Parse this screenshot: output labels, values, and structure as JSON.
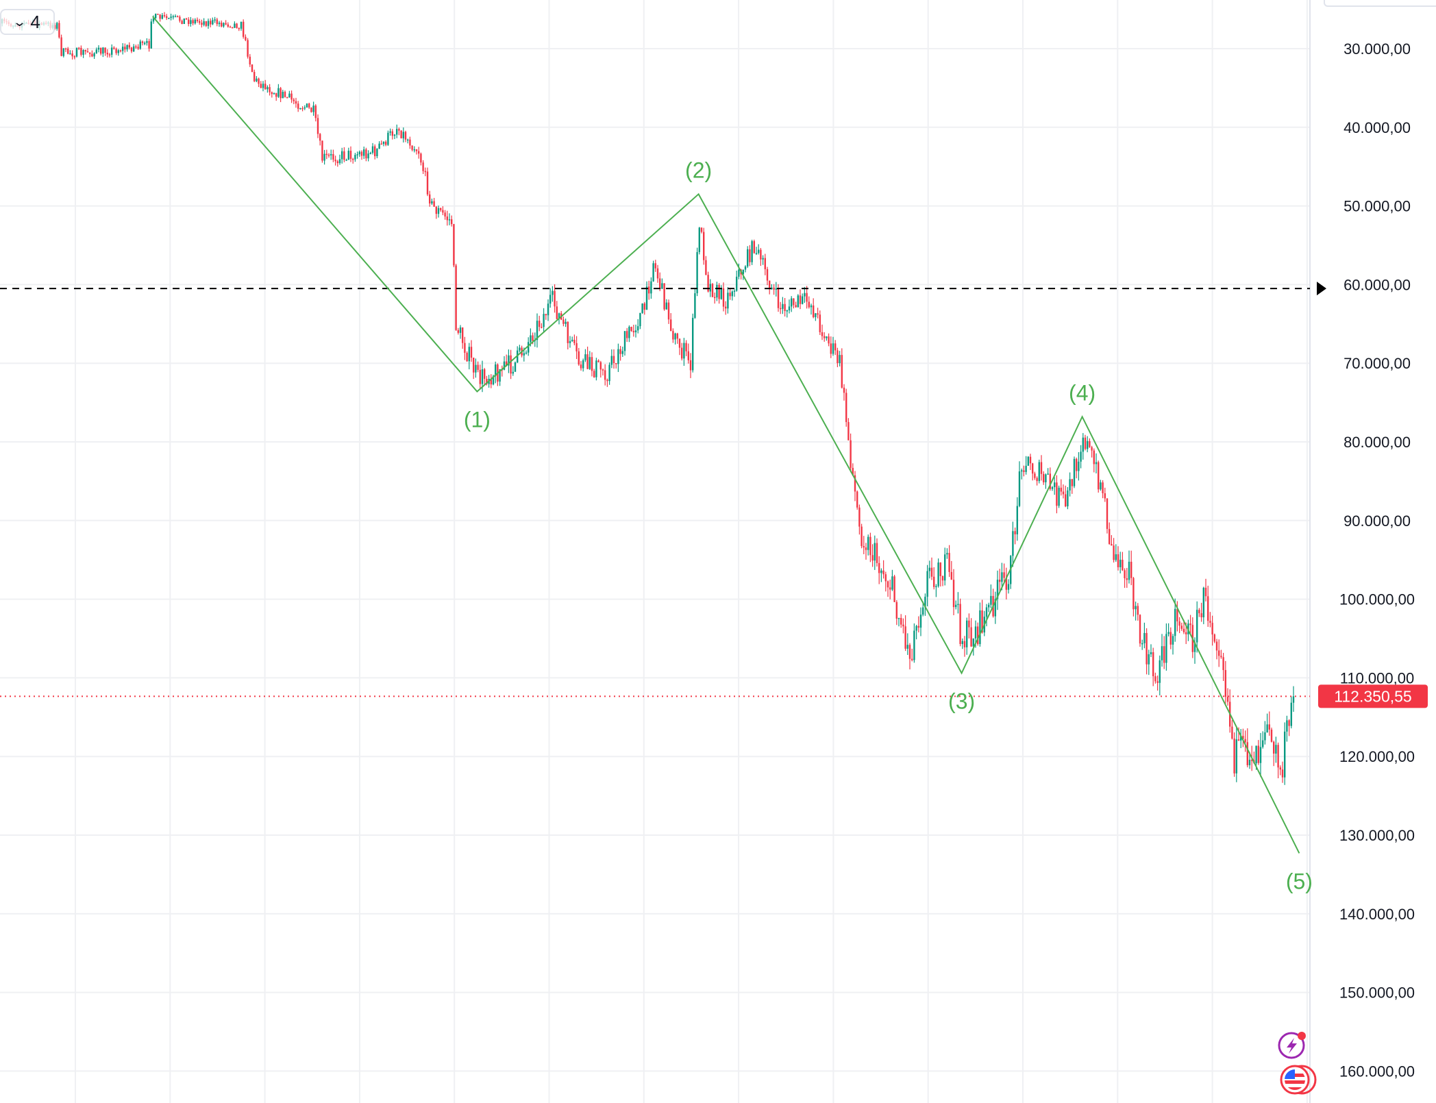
{
  "toolbar": {
    "interval_icon": "chevron-down-icon",
    "interval_value": "4"
  },
  "chart_data": {
    "type": "candlestick",
    "title": "",
    "y_axis": {
      "inverted": true,
      "ylim": [
        25000,
        162000
      ],
      "ticks": [
        30000,
        40000,
        50000,
        60000,
        70000,
        80000,
        90000,
        100000,
        110000,
        120000,
        130000,
        140000,
        150000,
        160000
      ],
      "tick_labels": [
        "30.000,00",
        "40.000,00",
        "50.000,00",
        "60.000,00",
        "70.000,00",
        "80.000,00",
        "90.000,00",
        "100.000,00",
        "110.000,00",
        "120.000,00",
        "130.000,00",
        "140.000,00",
        "150.000,00",
        "160.000,00"
      ]
    },
    "grid": true,
    "colors": {
      "up": "#089981",
      "down": "#F23645",
      "wave": "#4CAF50",
      "last_price": "#F23645",
      "grid": "#EFF0F3"
    },
    "price_path_anchors": [
      {
        "bar": 0,
        "price": 26800
      },
      {
        "bar": 25,
        "price": 27000
      },
      {
        "bar": 27,
        "price": 30500
      },
      {
        "bar": 42,
        "price": 30500
      },
      {
        "bar": 67,
        "price": 29500
      },
      {
        "bar": 68,
        "price": 26000
      },
      {
        "bar": 109,
        "price": 27000
      },
      {
        "bar": 115,
        "price": 34000
      },
      {
        "bar": 142,
        "price": 38000
      },
      {
        "bar": 146,
        "price": 44000
      },
      {
        "bar": 171,
        "price": 43000
      },
      {
        "bar": 180,
        "price": 40000
      },
      {
        "bar": 190,
        "price": 43000
      },
      {
        "bar": 196,
        "price": 50000
      },
      {
        "bar": 205,
        "price": 52000
      },
      {
        "bar": 207,
        "price": 65000
      },
      {
        "bar": 217,
        "price": 72000
      },
      {
        "bar": 234,
        "price": 70000
      },
      {
        "bar": 251,
        "price": 62000
      },
      {
        "bar": 263,
        "price": 70000
      },
      {
        "bar": 276,
        "price": 71000
      },
      {
        "bar": 293,
        "price": 63000
      },
      {
        "bar": 297,
        "price": 57000
      },
      {
        "bar": 307,
        "price": 67000
      },
      {
        "bar": 314,
        "price": 70000
      },
      {
        "bar": 318,
        "price": 52000
      },
      {
        "bar": 322,
        "price": 60000
      },
      {
        "bar": 330,
        "price": 62000
      },
      {
        "bar": 343,
        "price": 55000
      },
      {
        "bar": 355,
        "price": 63000
      },
      {
        "bar": 368,
        "price": 62000
      },
      {
        "bar": 376,
        "price": 67000
      },
      {
        "bar": 382,
        "price": 70000
      },
      {
        "bar": 387,
        "price": 82000
      },
      {
        "bar": 391,
        "price": 91000
      },
      {
        "bar": 405,
        "price": 98000
      },
      {
        "bar": 414,
        "price": 107000
      },
      {
        "bar": 422,
        "price": 97000
      },
      {
        "bar": 431,
        "price": 96000
      },
      {
        "bar": 438,
        "price": 105000
      },
      {
        "bar": 445,
        "price": 104000
      },
      {
        "bar": 460,
        "price": 96000
      },
      {
        "bar": 465,
        "price": 82000
      },
      {
        "bar": 476,
        "price": 85000
      },
      {
        "bar": 485,
        "price": 88000
      },
      {
        "bar": 493,
        "price": 79000
      },
      {
        "bar": 502,
        "price": 86000
      },
      {
        "bar": 506,
        "price": 94000
      },
      {
        "bar": 514,
        "price": 96000
      },
      {
        "bar": 518,
        "price": 104000
      },
      {
        "bar": 526,
        "price": 110000
      },
      {
        "bar": 535,
        "price": 102000
      },
      {
        "bar": 543,
        "price": 105000
      },
      {
        "bar": 548,
        "price": 100000
      },
      {
        "bar": 556,
        "price": 106000
      },
      {
        "bar": 562,
        "price": 120000
      },
      {
        "bar": 573,
        "price": 119000
      },
      {
        "bar": 577,
        "price": 114000
      },
      {
        "bar": 583,
        "price": 122000
      },
      {
        "bar": 589,
        "price": 112350.55
      }
    ],
    "reference_line": {
      "price": 60500,
      "style": "dashed"
    },
    "last_price": {
      "value": 112350.55,
      "label": "112.350,55"
    },
    "elliott_wave": [
      {
        "label": "",
        "bar": 69,
        "price": 25900
      },
      {
        "label": "(1)",
        "bar": 217,
        "price": 73600
      },
      {
        "label": "(2)",
        "bar": 318,
        "price": 48500
      },
      {
        "label": "(3)",
        "bar": 438,
        "price": 109400
      },
      {
        "label": "(4)",
        "bar": 493,
        "price": 76800
      },
      {
        "label": "(5)",
        "bar": 592,
        "price": 132300
      }
    ]
  },
  "icons": {
    "alerts": "lightning-icon",
    "currency": "us-flag-icon"
  }
}
